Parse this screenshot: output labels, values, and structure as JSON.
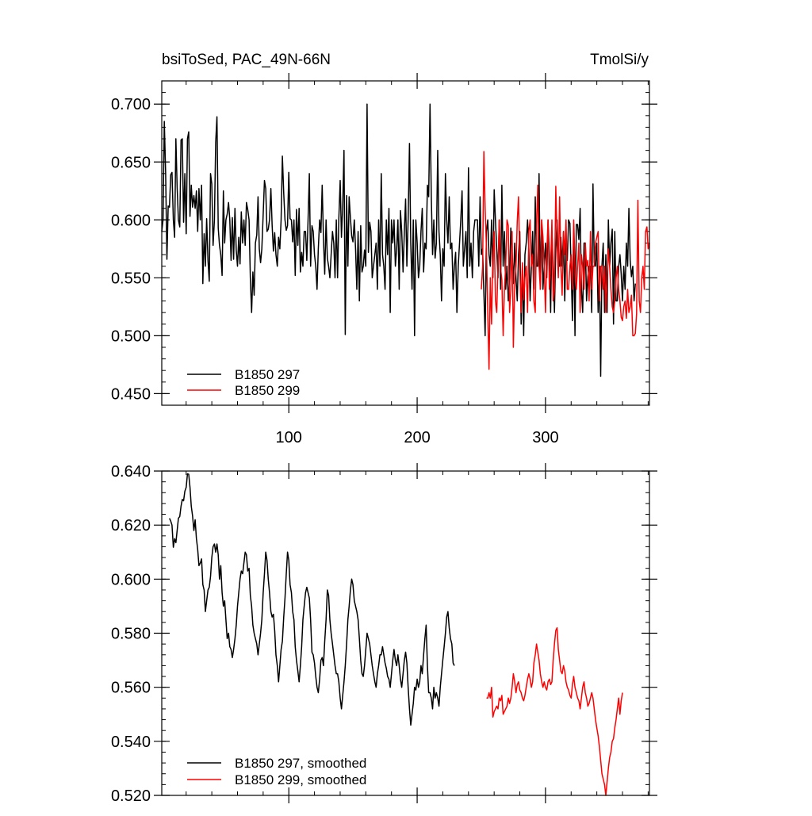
{
  "chart_data": [
    {
      "type": "line",
      "title_left": "bsiToSed, PAC_49N-66N",
      "title_right": "TmolSi/y",
      "xlim": [
        1,
        381
      ],
      "ylim": [
        0.44,
        0.72
      ],
      "xticks": [
        100,
        200,
        300
      ],
      "yticks": [
        0.45,
        0.5,
        0.55,
        0.6,
        0.65,
        0.7
      ],
      "ytick_labels": [
        "0.450",
        "0.500",
        "0.550",
        "0.600",
        "0.650",
        "0.700"
      ],
      "xtick_labels": [
        "100",
        "200",
        "300"
      ],
      "legend": {
        "placement": "bottom-left",
        "entries": [
          "B1850 297",
          "B1850 299"
        ]
      },
      "series": [
        {
          "name": "B1850 297",
          "color": "#000000",
          "x_start": 1,
          "values": [
            0.59,
            0.6,
            0.685,
            0.64,
            0.566,
            0.612,
            0.611,
            0.639,
            0.641,
            0.6,
            0.585,
            0.67,
            0.628,
            0.6,
            0.594,
            0.669,
            0.67,
            0.598,
            0.64,
            0.588,
            0.67,
            0.676,
            0.603,
            0.63,
            0.611,
            0.621,
            0.61,
            0.625,
            0.59,
            0.627,
            0.6,
            0.63,
            0.545,
            0.588,
            0.56,
            0.601,
            0.565,
            0.547,
            0.64,
            0.631,
            0.578,
            0.6,
            0.667,
            0.689,
            0.593,
            0.578,
            0.57,
            0.552,
            0.625,
            0.58,
            0.6,
            0.605,
            0.615,
            0.6,
            0.565,
            0.602,
            0.566,
            0.61,
            0.574,
            0.56,
            0.585,
            0.562,
            0.607,
            0.58,
            0.6,
            0.578,
            0.615,
            0.609,
            0.6,
            0.55,
            0.52,
            0.555,
            0.535,
            0.58,
            0.587,
            0.62,
            0.575,
            0.563,
            0.575,
            0.605,
            0.634,
            0.627,
            0.59,
            0.592,
            0.6,
            0.627,
            0.595,
            0.573,
            0.589,
            0.57,
            0.56,
            0.585,
            0.575,
            0.6,
            0.655,
            0.623,
            0.6,
            0.591,
            0.595,
            0.641,
            0.601,
            0.6,
            0.581,
            0.6,
            0.552,
            0.609,
            0.578,
            0.61,
            0.555,
            0.572,
            0.56,
            0.59,
            0.59,
            0.565,
            0.6,
            0.64,
            0.56,
            0.595,
            0.59,
            0.57,
            0.56,
            0.54,
            0.575,
            0.6,
            0.589,
            0.63,
            0.584,
            0.553,
            0.6,
            0.567,
            0.56,
            0.55,
            0.57,
            0.59,
            0.58,
            0.55,
            0.6,
            0.55,
            0.601,
            0.634,
            0.585,
            0.612,
            0.66,
            0.501,
            0.621,
            0.56,
            0.62,
            0.602,
            0.586,
            0.581,
            0.6,
            0.575,
            0.54,
            0.59,
            0.53,
            0.595,
            0.555,
            0.56,
            0.574,
            0.56,
            0.7,
            0.572,
            0.598,
            0.59,
            0.55,
            0.56,
            0.57,
            0.58,
            0.54,
            0.6,
            0.56,
            0.64,
            0.57,
            0.56,
            0.54,
            0.6,
            0.57,
            0.61,
            0.52,
            0.6,
            0.58,
            0.6,
            0.56,
            0.575,
            0.6,
            0.54,
            0.608,
            0.59,
            0.555,
            0.59,
            0.618,
            0.56,
            0.6,
            0.666,
            0.58,
            0.54,
            0.6,
            0.5,
            0.6,
            0.58,
            0.55,
            0.56,
            0.59,
            0.61,
            0.555,
            0.58,
            0.575,
            0.63,
            0.62,
            0.7,
            0.62,
            0.57,
            0.6,
            0.567,
            0.58,
            0.66,
            0.59,
            0.57,
            0.53,
            0.575,
            0.56,
            0.64,
            0.6,
            0.58,
            0.62,
            0.575,
            0.58,
            0.54,
            0.56,
            0.572,
            0.52,
            0.56,
            0.58,
            0.6,
            0.625,
            0.56,
            0.575,
            0.59,
            0.55,
            0.645,
            0.56,
            0.58,
            0.55,
            0.59,
            0.6,
            0.6,
            0.6,
            0.56,
            0.62,
            0.57,
            0.575,
            0.537,
            0.5,
            0.59,
            0.6,
            0.57,
            0.56,
            0.6,
            0.55,
            0.626,
            0.6,
            0.575,
            0.55,
            0.6,
            0.54,
            0.63,
            0.56,
            0.59,
            0.54,
            0.56,
            0.53,
            0.55,
            0.593,
            0.571,
            0.545,
            0.58,
            0.55,
            0.53,
            0.57,
            0.59,
            0.51,
            0.56,
            0.5,
            0.57,
            0.58,
            0.6,
            0.575,
            0.53,
            0.56,
            0.59,
            0.54,
            0.62,
            0.56,
            0.56,
            0.64,
            0.54,
            0.6,
            0.54,
            0.56,
            0.58,
            0.55,
            0.6,
            0.57,
            0.52,
            0.59,
            0.56,
            0.52,
            0.575,
            0.6,
            0.56,
            0.56,
            0.585,
            0.56,
            0.59,
            0.53,
            0.58,
            0.565,
            0.6,
            0.597,
            0.556,
            0.513,
            0.583,
            0.5,
            0.596,
            0.596,
            0.583,
            0.61,
            0.54,
            0.52,
            0.58,
            0.58,
            0.53,
            0.551,
            0.56,
            0.56,
            0.52,
            0.631,
            0.563,
            0.56,
            0.58,
            0.52,
            0.56,
            0.465,
            0.56,
            0.58,
            0.52,
            0.57,
            0.52,
            0.6,
            0.56,
            0.58,
            0.592,
            0.51,
            0.59,
            0.53,
            0.53,
            0.56,
            0.57,
            0.553,
            0.53,
            0.56,
            0.54,
            0.58,
            0.56,
            0.61,
            0.565,
            0.551,
            0.56,
            0.53,
            0.545
          ]
        },
        {
          "name": "B1850 299",
          "color": "#ff0000",
          "x_start": 250,
          "values": [
            0.54,
            0.56,
            0.659,
            0.61,
            0.575,
            0.52,
            0.471,
            0.55,
            0.51,
            0.57,
            0.59,
            0.53,
            0.52,
            0.56,
            0.6,
            0.558,
            0.548,
            0.5,
            0.54,
            0.56,
            0.6,
            0.595,
            0.52,
            0.54,
            0.59,
            0.49,
            0.545,
            0.56,
            0.599,
            0.62,
            0.56,
            0.52,
            0.563,
            0.531,
            0.55,
            0.56,
            0.52,
            0.59,
            0.6,
            0.56,
            0.57,
            0.53,
            0.52,
            0.595,
            0.63,
            0.56,
            0.54,
            0.6,
            0.585,
            0.56,
            0.52,
            0.57,
            0.6,
            0.54,
            0.56,
            0.6,
            0.53,
            0.54,
            0.629,
            0.583,
            0.55,
            0.62,
            0.56,
            0.535,
            0.59,
            0.57,
            0.6,
            0.54,
            0.54,
            0.56,
            0.57,
            0.54,
            0.6,
            0.56,
            0.54,
            0.56,
            0.58,
            0.52,
            0.57,
            0.56,
            0.54,
            0.58,
            0.56,
            0.565,
            0.53,
            0.59,
            0.54,
            0.56,
            0.56,
            0.58,
            0.585,
            0.59,
            0.53,
            0.56,
            0.56,
            0.54,
            0.56,
            0.52,
            0.55,
            0.575,
            0.56,
            0.54,
            0.525,
            0.52,
            0.53,
            0.55,
            0.56,
            0.54,
            0.53,
            0.516,
            0.513,
            0.525,
            0.53,
            0.515,
            0.54,
            0.52,
            0.525,
            0.535,
            0.5,
            0.5,
            0.502,
            0.519,
            0.617,
            0.53,
            0.52,
            0.55,
            0.56,
            0.54,
            0.59,
            0.594,
            0.575,
            0.58
          ]
        }
      ]
    },
    {
      "type": "line",
      "xlim": [
        1,
        381
      ],
      "ylim": [
        0.52,
        0.64
      ],
      "xticks": [
        100,
        200,
        300
      ],
      "yticks": [
        0.52,
        0.54,
        0.56,
        0.58,
        0.6,
        0.62,
        0.64
      ],
      "ytick_labels": [
        "0.520",
        "0.540",
        "0.560",
        "0.580",
        "0.600",
        "0.620",
        "0.640"
      ],
      "legend": {
        "placement": "bottom-left",
        "entries": [
          "B1850 297, smoothed",
          "B1850 299, smoothed"
        ]
      },
      "series": [
        {
          "name": "B1850 297, smoothed",
          "color": "#000000",
          "x_start": 7,
          "values": [
            0.6225,
            0.6215,
            0.62,
            0.6118,
            0.615,
            0.6135,
            0.618,
            0.6225,
            0.6232,
            0.627,
            0.6295,
            0.629,
            0.6325,
            0.634,
            0.639,
            0.6388,
            0.634,
            0.627,
            0.6235,
            0.618,
            0.622,
            0.615,
            0.611,
            0.605,
            0.606,
            0.6075,
            0.598,
            0.596,
            0.588,
            0.592,
            0.596,
            0.597,
            0.601,
            0.608,
            0.612,
            0.613,
            0.61,
            0.613,
            0.609,
            0.6,
            0.605,
            0.595,
            0.59,
            0.592,
            0.585,
            0.578,
            0.58,
            0.575,
            0.574,
            0.571,
            0.574,
            0.578,
            0.583,
            0.59,
            0.595,
            0.6,
            0.603,
            0.602,
            0.606,
            0.61,
            0.609,
            0.603,
            0.604,
            0.594,
            0.59,
            0.583,
            0.58,
            0.578,
            0.576,
            0.572,
            0.576,
            0.58,
            0.585,
            0.595,
            0.602,
            0.61,
            0.607,
            0.6,
            0.595,
            0.588,
            0.586,
            0.587,
            0.581,
            0.572,
            0.568,
            0.562,
            0.568,
            0.574,
            0.577,
            0.586,
            0.593,
            0.602,
            0.61,
            0.607,
            0.598,
            0.595,
            0.588,
            0.585,
            0.575,
            0.57,
            0.566,
            0.562,
            0.568,
            0.575,
            0.585,
            0.59,
            0.595,
            0.597,
            0.595,
            0.593,
            0.585,
            0.573,
            0.572,
            0.569,
            0.564,
            0.56,
            0.558,
            0.563,
            0.57,
            0.571,
            0.568,
            0.577,
            0.585,
            0.596,
            0.594,
            0.585,
            0.58,
            0.576,
            0.572,
            0.568,
            0.565,
            0.565,
            0.562,
            0.556,
            0.552,
            0.557,
            0.562,
            0.568,
            0.576,
            0.585,
            0.59,
            0.596,
            0.6,
            0.598,
            0.592,
            0.59,
            0.588,
            0.585,
            0.578,
            0.57,
            0.565,
            0.564,
            0.568,
            0.574,
            0.58,
            0.578,
            0.576,
            0.572,
            0.568,
            0.565,
            0.562,
            0.56,
            0.565,
            0.568,
            0.572,
            0.572,
            0.575,
            0.572,
            0.569,
            0.567,
            0.564,
            0.563,
            0.56,
            0.565,
            0.57,
            0.574,
            0.57,
            0.568,
            0.572,
            0.568,
            0.563,
            0.56,
            0.565,
            0.57,
            0.573,
            0.569,
            0.56,
            0.552,
            0.546,
            0.55,
            0.554,
            0.56,
            0.559,
            0.563,
            0.56,
            0.562,
            0.568,
            0.565,
            0.572,
            0.578,
            0.583,
            0.568,
            0.558,
            0.558,
            0.556,
            0.552,
            0.56,
            0.556,
            0.558,
            0.556,
            0.553,
            0.56,
            0.565,
            0.57,
            0.575,
            0.58,
            0.586,
            0.588,
            0.582,
            0.578,
            0.576,
            0.569,
            0.568
          ]
        },
        {
          "name": "B1850 299, smoothed",
          "color": "#ff0000",
          "x_start": 254,
          "values": [
            0.556,
            0.556,
            0.558,
            0.556,
            0.56,
            0.549,
            0.551,
            0.552,
            0.553,
            0.552,
            0.556,
            0.555,
            0.557,
            0.55,
            0.551,
            0.552,
            0.553,
            0.556,
            0.554,
            0.556,
            0.56,
            0.565,
            0.562,
            0.558,
            0.561,
            0.562,
            0.559,
            0.558,
            0.556,
            0.555,
            0.557,
            0.56,
            0.563,
            0.565,
            0.563,
            0.56,
            0.562,
            0.569,
            0.572,
            0.576,
            0.573,
            0.57,
            0.565,
            0.562,
            0.56,
            0.562,
            0.56,
            0.559,
            0.562,
            0.563,
            0.561,
            0.562,
            0.57,
            0.576,
            0.581,
            0.582,
            0.574,
            0.57,
            0.566,
            0.565,
            0.568,
            0.566,
            0.562,
            0.56,
            0.559,
            0.557,
            0.556,
            0.561,
            0.564,
            0.56,
            0.558,
            0.556,
            0.555,
            0.552,
            0.556,
            0.56,
            0.562,
            0.558,
            0.556,
            0.553,
            0.554,
            0.556,
            0.558,
            0.556,
            0.552,
            0.548,
            0.545,
            0.542,
            0.538,
            0.533,
            0.528,
            0.526,
            0.524,
            0.52,
            0.525,
            0.53,
            0.534,
            0.536,
            0.54,
            0.541,
            0.545,
            0.548,
            0.552,
            0.556,
            0.55,
            0.555,
            0.558
          ]
        }
      ]
    }
  ]
}
